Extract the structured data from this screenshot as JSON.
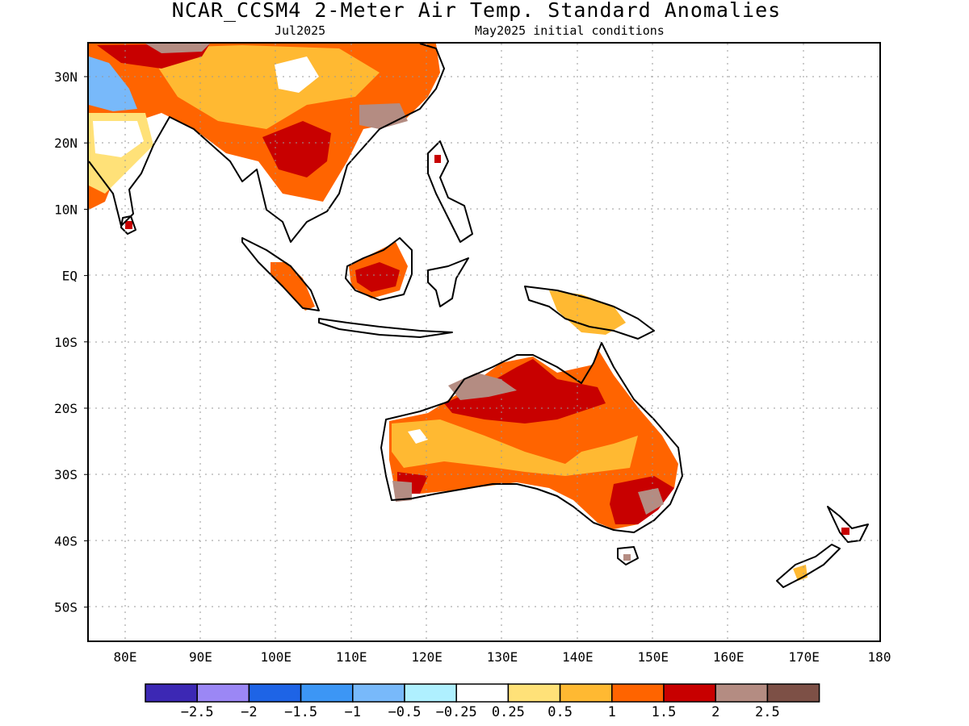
{
  "title": "NCAR_CCSM4 2-Meter Air Temp. Standard Anomalies",
  "subtitle_left": "Jul2025",
  "subtitle_right": "May2025 initial conditions",
  "map": {
    "lon_range": [
      75,
      180
    ],
    "lat_range": [
      -55,
      35
    ],
    "lon_ticks": [
      "80E",
      "90E",
      "100E",
      "110E",
      "120E",
      "130E",
      "140E",
      "150E",
      "160E",
      "170E",
      "180"
    ],
    "lat_ticks": [
      "30N",
      "20N",
      "10N",
      "EQ",
      "10S",
      "20S",
      "30S",
      "40S",
      "50S"
    ],
    "grid": "dotted"
  },
  "legend": {
    "colors": [
      "#3c28b4",
      "#9b87f5",
      "#1e64e6",
      "#3c96f5",
      "#78b9fa",
      "#aff0ff",
      "#ffffff",
      "#ffe178",
      "#ffb932",
      "#ff6400",
      "#c80000",
      "#b48c82",
      "#7d5046"
    ],
    "labels": [
      "-2.5",
      "-2",
      "-1.5",
      "-1",
      "-0.5",
      "-0.25",
      "0.25",
      "0.5",
      "1",
      "1.5",
      "2",
      "2.5"
    ]
  },
  "regions": [
    {
      "name": "India north",
      "level": 11,
      "color": "#b48c82"
    },
    {
      "name": "India northwest",
      "level": 5,
      "color": "#78b9fa"
    },
    {
      "name": "Indochina",
      "level": 10,
      "color": "#c80000"
    },
    {
      "name": "South China",
      "level": 9,
      "color": "#ff6400"
    },
    {
      "name": "Borneo",
      "level": 10,
      "color": "#c80000"
    },
    {
      "name": "New Guinea",
      "level": 8,
      "color": "#ffb932"
    },
    {
      "name": "Northern Australia",
      "level": 10,
      "color": "#c80000"
    },
    {
      "name": "Western Australia",
      "level": 8,
      "color": "#ffb932"
    },
    {
      "name": "Southeast Australia",
      "level": 10,
      "color": "#c80000"
    },
    {
      "name": "New Zealand South Island",
      "level": 8,
      "color": "#ffb932"
    }
  ]
}
